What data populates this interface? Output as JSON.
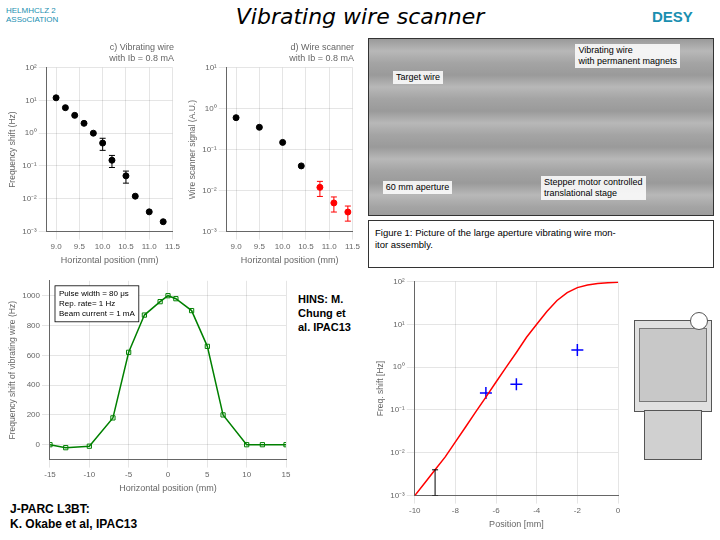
{
  "title": "Vibrating wire scanner",
  "annotations": [
    "HELMHCLZ 2\nASSoCIATION",
    "DESY",
    "Vibrating wire\nwith permanent magnets",
    "Target wire",
    "60 mm aperture",
    "Stepper motor controlled\ntranslational stage",
    "Figure 1: Picture of the large aperture vibrating wire mon-\nitor assembly.",
    "HINS: M.\nChung et\nal. IPAC13",
    "J-PARC L3BT:\nK. Okabe et al, IPAC13"
  ],
  "chart_data": [
    {
      "type": "scatter",
      "title": "c) Vibrating wire\nwith Ib = 0.8 mA",
      "x_label": "Horizontal position (mm)",
      "y_label": "Frequency shift (Hz)",
      "log": "y",
      "grid": true,
      "x": [
        9.0,
        9.2,
        9.4,
        9.6,
        9.8,
        10.0,
        10.2,
        10.5,
        10.7,
        11.0,
        11.3
      ],
      "series": [
        {
          "color": "black",
          "marker": "circle",
          "values": [
            12,
            6,
            3.5,
            2.0,
            1.0,
            0.5,
            0.15,
            0.05,
            0.012,
            0.004,
            0.002
          ],
          "errors": [
            null,
            null,
            null,
            null,
            null,
            0.2,
            0.06,
            0.02,
            null,
            null,
            null
          ]
        }
      ],
      "xlim": [
        8.8,
        11.5
      ],
      "xticks": [
        {
          "value": 9.0,
          "label": "9.0"
        },
        9.5,
        {
          "value": 10.0,
          "label": "10.0"
        },
        10.5,
        {
          "value": 11.0,
          "label": "11.0"
        },
        11.5
      ],
      "ylim": [
        0.001,
        100
      ],
      "yticks": [
        {
          "value": 0.001,
          "label": "10⁻³"
        },
        {
          "value": 0.01,
          "label": "10⁻²"
        },
        {
          "value": 0.1,
          "label": "10⁻¹"
        },
        {
          "value": 1,
          "label": "10⁰"
        },
        {
          "value": 10,
          "label": "10¹"
        },
        {
          "value": 100,
          "label": "10²"
        }
      ]
    },
    {
      "type": "scatter",
      "title": "d) Wire scanner\nwith Ib = 0.8 mA",
      "x_label": "Horizontal position (mm)",
      "y_label": "Wire scanner signal (A.U.)",
      "log": "y",
      "grid": true,
      "series": [
        {
          "color": "black",
          "marker": "circle",
          "x": [
            9.0,
            9.5,
            10.0,
            10.4
          ],
          "values": [
            0.6,
            0.35,
            0.15,
            0.04
          ]
        },
        {
          "color": "red",
          "marker": "circle",
          "x": [
            10.8,
            11.1,
            11.4
          ],
          "values": [
            0.012,
            0.005,
            0.003
          ],
          "errors": [
            0.0048,
            0.002,
            0.0012
          ]
        }
      ],
      "xlim": [
        8.8,
        11.5
      ],
      "xticks": [
        {
          "value": 9.0,
          "label": "9.0"
        },
        9.5,
        {
          "value": 10.0,
          "label": "10.0"
        },
        10.5,
        {
          "value": 11.0,
          "label": "11.0"
        },
        11.5
      ],
      "ylim": [
        0.001,
        10
      ],
      "yticks": [
        {
          "value": 0.001,
          "label": "10⁻³"
        },
        {
          "value": 0.01,
          "label": "10⁻²"
        },
        {
          "value": 0.1,
          "label": "10⁻¹"
        },
        {
          "value": 1,
          "label": "10⁰"
        },
        {
          "value": 10,
          "label": "10¹"
        }
      ]
    },
    {
      "type": "line",
      "x_label": "Horizontal position (mm)",
      "y_label": "Frequency shift of vibrating wire (Hz)",
      "grid": true,
      "annotations": [
        "Pulse width = 80 μs\nRep. rate= 1 Hz\nBeam current = 1 mA"
      ],
      "x": [
        -15,
        -13,
        -10,
        -7,
        -5,
        -3,
        -1,
        0,
        1,
        3,
        5,
        7,
        10,
        12,
        15
      ],
      "series": [
        {
          "color": "green",
          "marker": "square",
          "line_style": "solid",
          "values": [
            0,
            -20,
            -10,
            180,
            620,
            870,
            960,
            1000,
            980,
            900,
            660,
            200,
            0,
            0,
            0
          ]
        }
      ],
      "xlim": [
        -15,
        15
      ],
      "xticks": [
        -15,
        -10,
        -5,
        0,
        5,
        10,
        15
      ],
      "ylim": [
        -100,
        1100
      ],
      "yticks": [
        0,
        200,
        400,
        600,
        800,
        1000
      ]
    },
    {
      "type": "line",
      "x_label": "Position [mm]",
      "y_label": "Freq. shift [Hz]",
      "log": "y",
      "grid": true,
      "series": [
        {
          "type": "line",
          "color": "red",
          "marker": "none",
          "line_style": "solid",
          "x": [
            -10.0,
            -9.5,
            -9.0,
            -8.5,
            -8.0,
            -7.5,
            -7.0,
            -6.5,
            -6.0,
            -5.5,
            -5.0,
            -4.5,
            -4.0,
            -3.5,
            -3.0,
            -2.5,
            -2.0,
            -1.5,
            -1.0,
            -0.5,
            0.0
          ],
          "values": [
            0.001,
            0.002,
            0.004,
            0.008,
            0.018,
            0.04,
            0.09,
            0.2,
            0.45,
            1.0,
            2.2,
            5.0,
            10.0,
            20.0,
            36.0,
            55.0,
            72.0,
            83.0,
            90.0,
            94.0,
            96.0
          ]
        },
        {
          "type": "scatter",
          "color": "blue",
          "marker": "cross",
          "x": [
            -6.5,
            -5.0,
            -2.0
          ],
          "values": [
            0.25,
            0.4,
            2.5
          ]
        },
        {
          "type": "scatter",
          "color": "black",
          "marker": "none",
          "x": [
            -9.0
          ],
          "values": [
            0.001
          ],
          "errors_minus": [
            0
          ],
          "errors_plus": [
            0.003
          ]
        }
      ],
      "xlim": [
        -10,
        0
      ],
      "xticks": [
        -10,
        -8,
        -6,
        -4,
        -2,
        0
      ],
      "ylim": [
        0.001,
        100
      ],
      "yticks": [
        {
          "value": 0.001,
          "label": "10⁻³"
        },
        {
          "value": 0.01,
          "label": "10⁻²"
        },
        {
          "value": 0.1,
          "label": "10⁻¹"
        },
        {
          "value": 1,
          "label": "10⁰"
        },
        {
          "value": 10,
          "label": "10¹"
        },
        {
          "value": 100,
          "label": "10²"
        }
      ]
    }
  ]
}
